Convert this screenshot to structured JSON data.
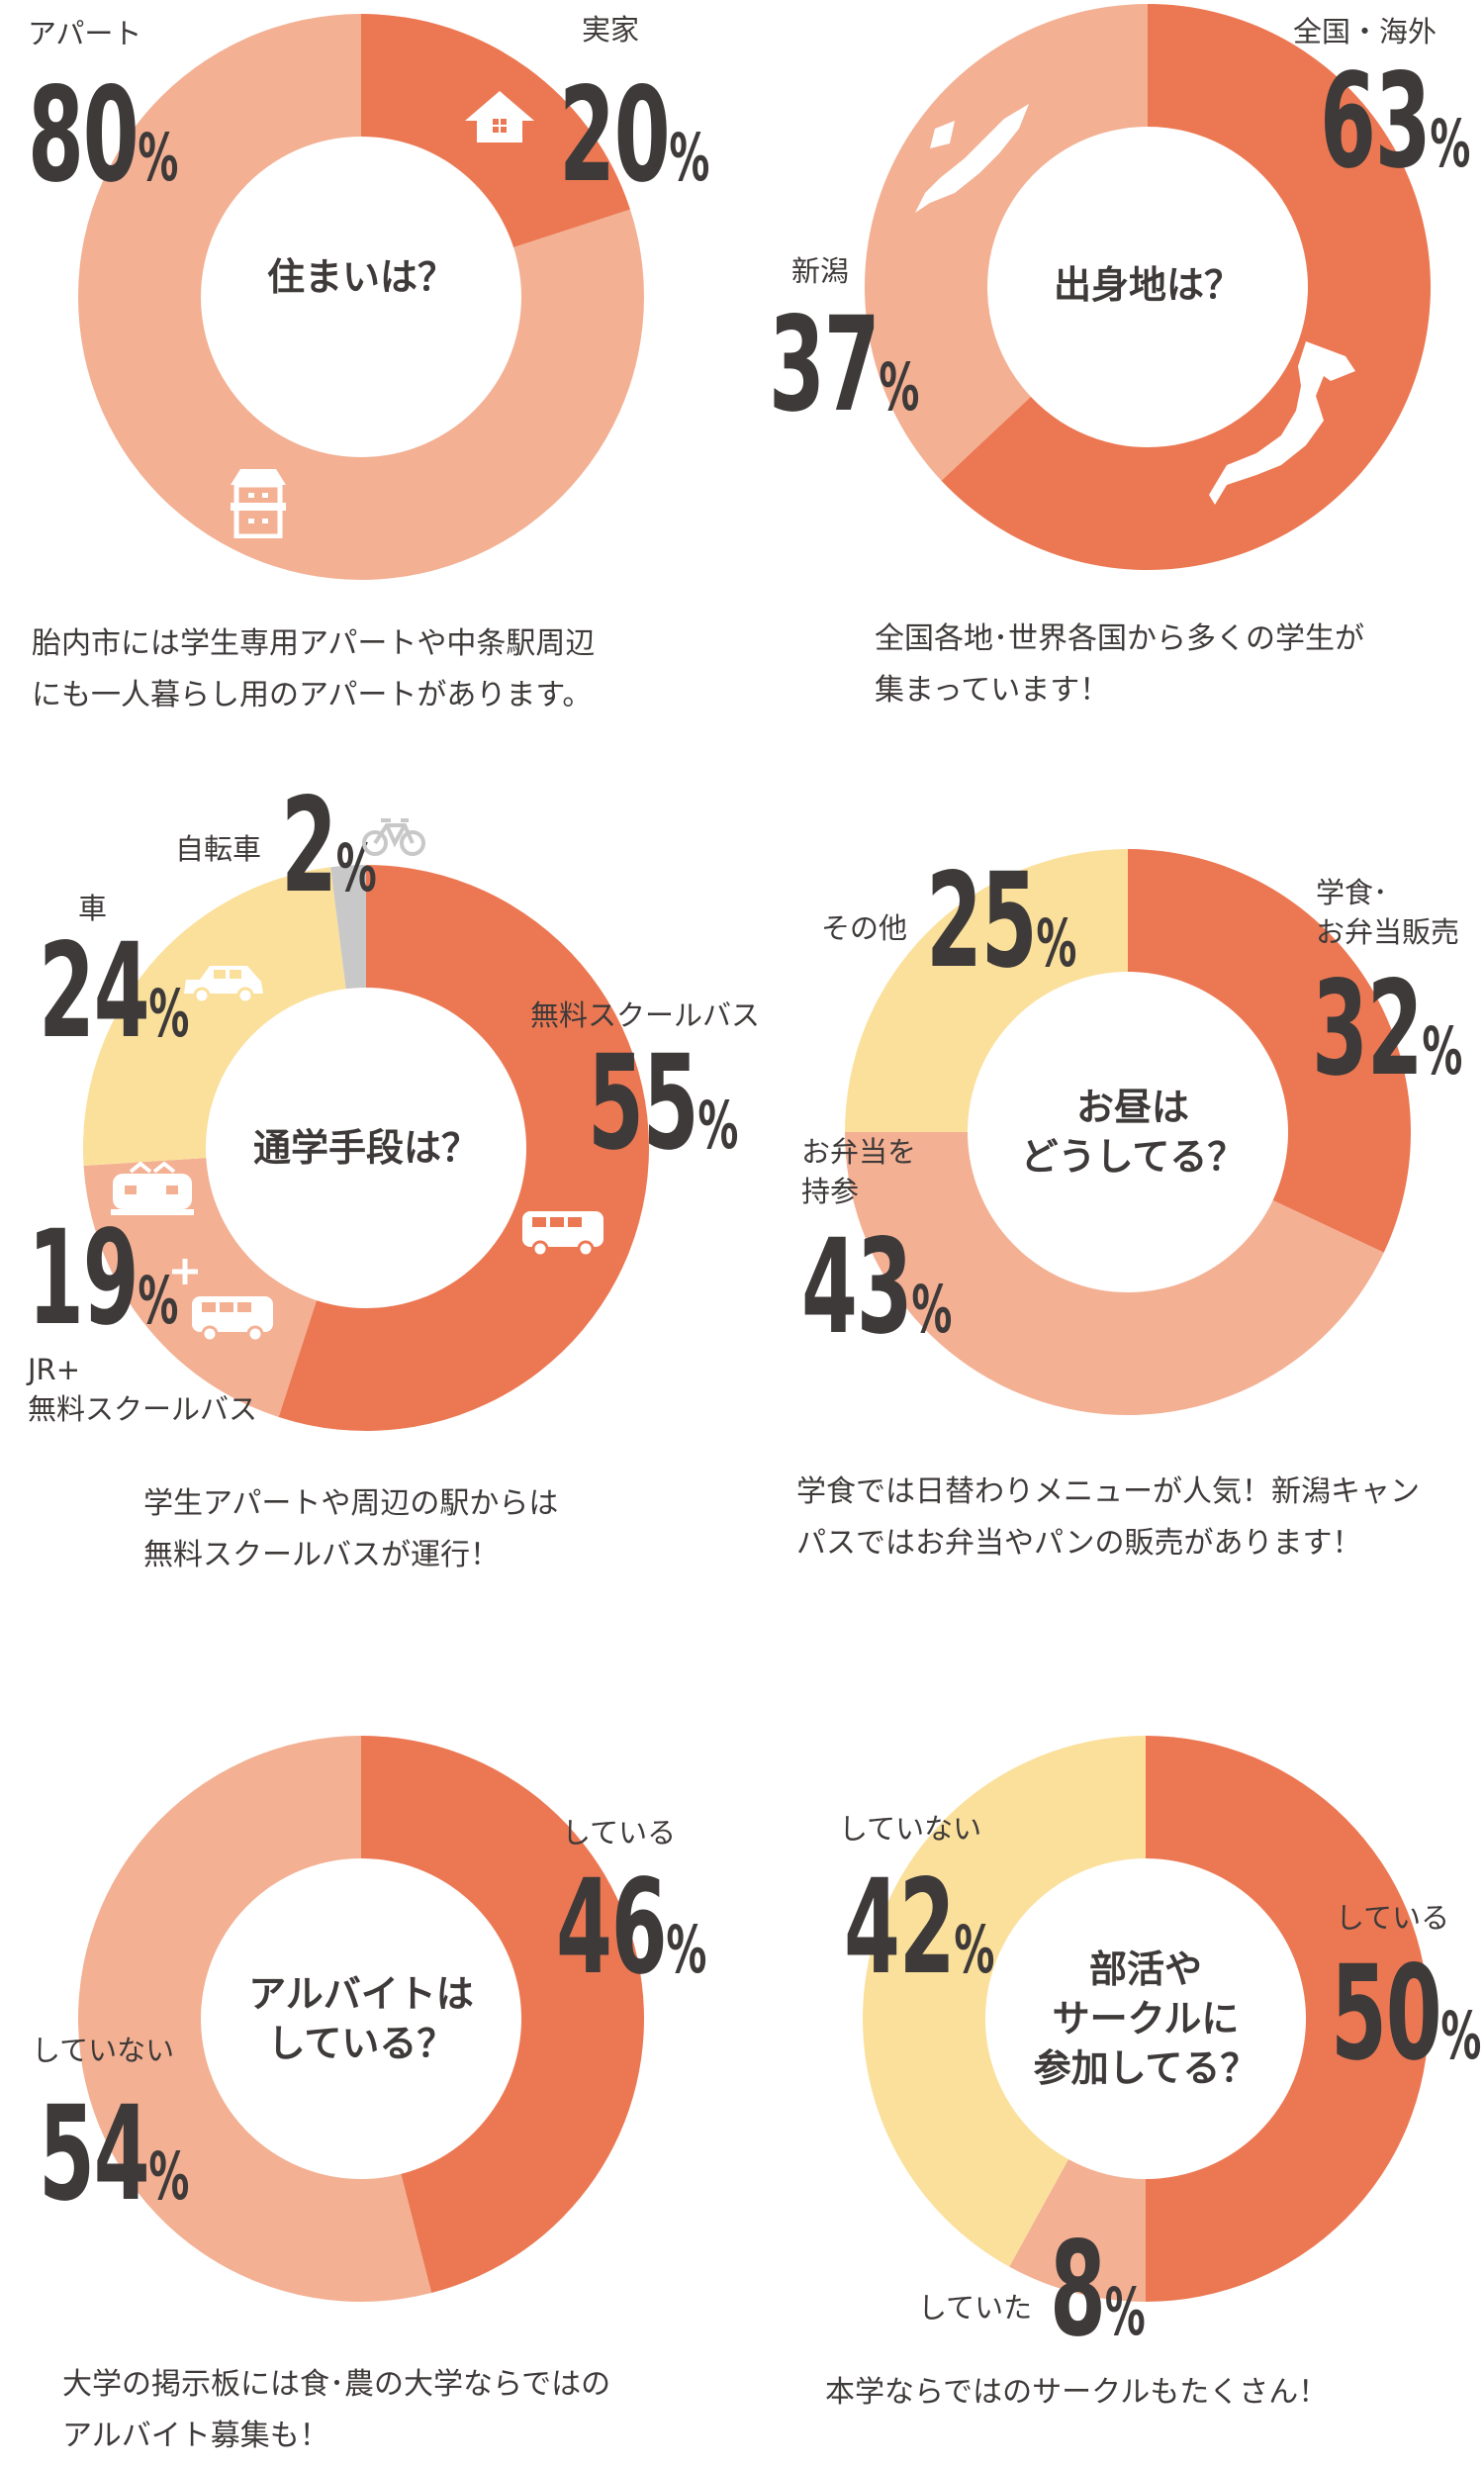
{
  "colors": {
    "dark": "#EC7853",
    "light": "#F3B093",
    "yellow": "#FBE09B",
    "gray": "#C8C8C8",
    "text": "#3E3A39"
  },
  "chart_data": [
    {
      "type": "pie",
      "title": "住まいは？",
      "slices": [
        {
          "label": "実家",
          "value": 20,
          "color": "dark"
        },
        {
          "label": "アパート",
          "value": 80,
          "color": "light"
        }
      ],
      "caption": [
        "胎内市には学生専用アパートや中条駅周辺",
        "にも一人暮らし用のアパートがあります。"
      ]
    },
    {
      "type": "pie",
      "title": "出身地は？",
      "slices": [
        {
          "label": "全国・海外",
          "value": 63,
          "color": "dark"
        },
        {
          "label": "新潟",
          "value": 37,
          "color": "light"
        }
      ],
      "caption": [
        "全国各地･世界各国から多くの学生が",
        "集まっています！"
      ]
    },
    {
      "type": "pie",
      "title": "通学手段は？",
      "slices": [
        {
          "label": "無料スクールバス",
          "value": 55,
          "color": "dark"
        },
        {
          "label": "JR+ 無料スクールバス",
          "label_lines": [
            "JR+",
            "無料スクールバス"
          ],
          "value": 19,
          "color": "light"
        },
        {
          "label": "車",
          "value": 24,
          "color": "yellow"
        },
        {
          "label": "自転車",
          "value": 2,
          "color": "gray"
        }
      ],
      "caption": [
        "学生アパートや周辺の駅からは",
        "無料スクールバスが運行！"
      ]
    },
    {
      "type": "pie",
      "title": "お昼は どうしてる？",
      "title_lines": [
        "お昼は",
        "どうしてる？"
      ],
      "slices": [
        {
          "label": "学食･お弁当販売",
          "label_lines": [
            "学食･",
            "お弁当販売"
          ],
          "value": 32,
          "color": "dark"
        },
        {
          "label": "お弁当を持参",
          "label_lines": [
            "お弁当を",
            "持参"
          ],
          "value": 43,
          "color": "light"
        },
        {
          "label": "その他",
          "value": 25,
          "color": "yellow"
        }
      ],
      "caption": [
        "学食では日替わりメニューが人気！新潟キャン",
        "パスではお弁当やパンの販売があります！"
      ]
    },
    {
      "type": "pie",
      "title": "アルバイトは している？",
      "title_lines": [
        "アルバイトは",
        "している？"
      ],
      "slices": [
        {
          "label": "している",
          "value": 46,
          "color": "dark"
        },
        {
          "label": "していない",
          "value": 54,
          "color": "light"
        }
      ],
      "caption": [
        "大学の掲示板には食･農の大学ならではの",
        "アルバイト募集も！"
      ]
    },
    {
      "type": "pie",
      "title": "部活や サークルに 参加してる？",
      "title_lines": [
        "部活や",
        "サークルに",
        "参加してる？"
      ],
      "slices": [
        {
          "label": "している",
          "value": 50,
          "color": "dark"
        },
        {
          "label": "していた",
          "value": 8,
          "color": "light"
        },
        {
          "label": "していない",
          "value": 42,
          "color": "yellow"
        }
      ],
      "caption": [
        "本学ならではのサークルもたくさん！"
      ]
    }
  ],
  "pct": "%"
}
